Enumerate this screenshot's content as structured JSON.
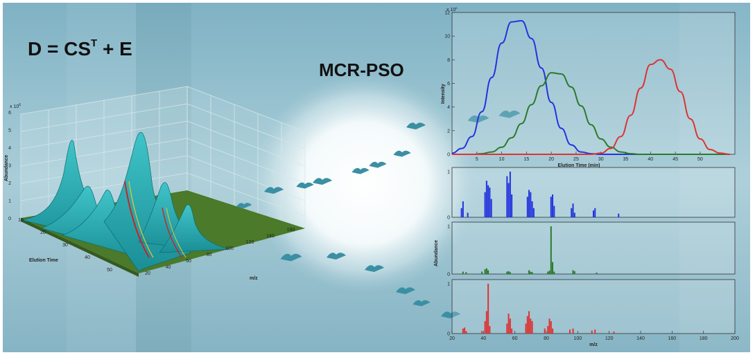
{
  "equation": {
    "lhs": "D = CS",
    "sup": "T",
    "rest": " + E"
  },
  "method_title": "MCR-PSO",
  "surface3d": {
    "zlabel": "Abundance",
    "zmult": "x 10",
    "zmult_exp": "6",
    "zticks": [
      "0",
      "1",
      "2",
      "3",
      "4",
      "5",
      "6"
    ],
    "xlabel": "Elution Time",
    "xticks": [
      "10",
      "20",
      "30",
      "40",
      "50"
    ],
    "mzlabel": "m/z",
    "mzticks": [
      "20",
      "40",
      "60",
      "80",
      "100",
      "120",
      "140",
      "160"
    ]
  },
  "colors": {
    "blue": "#2233dd",
    "green": "#2a7a2a",
    "red": "#dd3333",
    "surface": "#2aa8ad",
    "floor": "#4a7a2a"
  },
  "chart_data": [
    {
      "type": "line",
      "xlabel": "Elution Time (min)",
      "ylabel": "Intensity",
      "ymult": "x 10",
      "ymult_exp": "6",
      "xlim": [
        0,
        57
      ],
      "ylim": [
        0,
        12
      ],
      "xticks": [
        "5",
        "10",
        "15",
        "20",
        "25",
        "30",
        "35",
        "40",
        "45",
        "50"
      ],
      "yticks": [
        "0",
        "2",
        "4",
        "6",
        "8",
        "10",
        "12"
      ],
      "x": [
        0,
        2,
        4,
        6,
        8,
        10,
        12,
        14,
        16,
        18,
        20,
        22,
        24,
        26,
        28,
        30,
        32,
        34,
        36,
        38,
        40,
        42,
        44,
        46,
        48,
        50,
        52,
        54,
        56
      ],
      "series": [
        {
          "color": "blue",
          "values": [
            0.1,
            0.5,
            1.5,
            3.6,
            6.5,
            9.4,
            11.2,
            11.3,
            9.8,
            7.3,
            4.4,
            2.2,
            0.8,
            0.2,
            0.05,
            0,
            0,
            0,
            0,
            0,
            0,
            0,
            0,
            0,
            0,
            0,
            0,
            0,
            0
          ]
        },
        {
          "color": "green",
          "values": [
            0,
            0,
            0,
            0.05,
            0.2,
            0.6,
            1.4,
            2.6,
            4.2,
            5.8,
            6.9,
            6.8,
            5.7,
            4.1,
            2.5,
            1.3,
            0.6,
            0.2,
            0.05,
            0,
            0,
            0,
            0,
            0,
            0,
            0,
            0,
            0,
            0
          ]
        },
        {
          "color": "red",
          "values": [
            0,
            0,
            0,
            0,
            0,
            0,
            0,
            0,
            0,
            0,
            0,
            0,
            0,
            0,
            0,
            0.1,
            0.5,
            1.5,
            3.3,
            5.6,
            7.6,
            8.0,
            7.2,
            5.3,
            3.0,
            1.3,
            0.4,
            0.1,
            0
          ]
        }
      ]
    },
    {
      "type": "bar",
      "ylabel": "Abundance",
      "xlabel": "m/z",
      "xlim": [
        20,
        200
      ],
      "ylim": [
        0,
        1
      ],
      "xticks": [
        "20",
        "40",
        "60",
        "80",
        "100",
        "120",
        "140",
        "160",
        "180",
        "200"
      ],
      "yticks": [
        "0",
        "1"
      ],
      "series": [
        {
          "color": "blue",
          "mz": [
            26,
            27,
            30,
            41,
            42,
            43,
            44,
            45,
            55,
            56,
            57,
            58,
            68,
            69,
            70,
            71,
            72,
            83,
            84,
            85,
            96,
            97,
            98,
            110,
            111,
            126
          ],
          "values": [
            0.2,
            0.35,
            0.1,
            0.55,
            0.8,
            0.7,
            0.65,
            0.4,
            0.9,
            0.75,
            1.0,
            0.5,
            0.45,
            0.6,
            0.55,
            0.35,
            0.2,
            0.45,
            0.5,
            0.25,
            0.2,
            0.3,
            0.1,
            0.15,
            0.2,
            0.08
          ]
        },
        {
          "color": "green",
          "mz": [
            27,
            29,
            39,
            41,
            42,
            43,
            55,
            56,
            57,
            69,
            70,
            71,
            81,
            82,
            83,
            84,
            85,
            97,
            98,
            112
          ],
          "values": [
            0.05,
            0.04,
            0.05,
            0.1,
            0.12,
            0.08,
            0.05,
            0.06,
            0.04,
            0.08,
            0.05,
            0.04,
            0.05,
            0.07,
            1.0,
            0.25,
            0.05,
            0.08,
            0.06,
            0.03
          ]
        },
        {
          "color": "red",
          "mz": [
            27,
            28,
            29,
            39,
            41,
            42,
            43,
            44,
            55,
            56,
            57,
            58,
            67,
            68,
            69,
            70,
            71,
            79,
            81,
            82,
            83,
            84,
            95,
            97,
            109,
            111,
            123
          ],
          "values": [
            0.1,
            0.12,
            0.05,
            0.05,
            0.25,
            0.45,
            1.0,
            0.15,
            0.2,
            0.4,
            0.3,
            0.1,
            0.2,
            0.35,
            0.45,
            0.3,
            0.25,
            0.1,
            0.15,
            0.3,
            0.25,
            0.1,
            0.08,
            0.1,
            0.06,
            0.08,
            0.04
          ]
        }
      ]
    }
  ]
}
